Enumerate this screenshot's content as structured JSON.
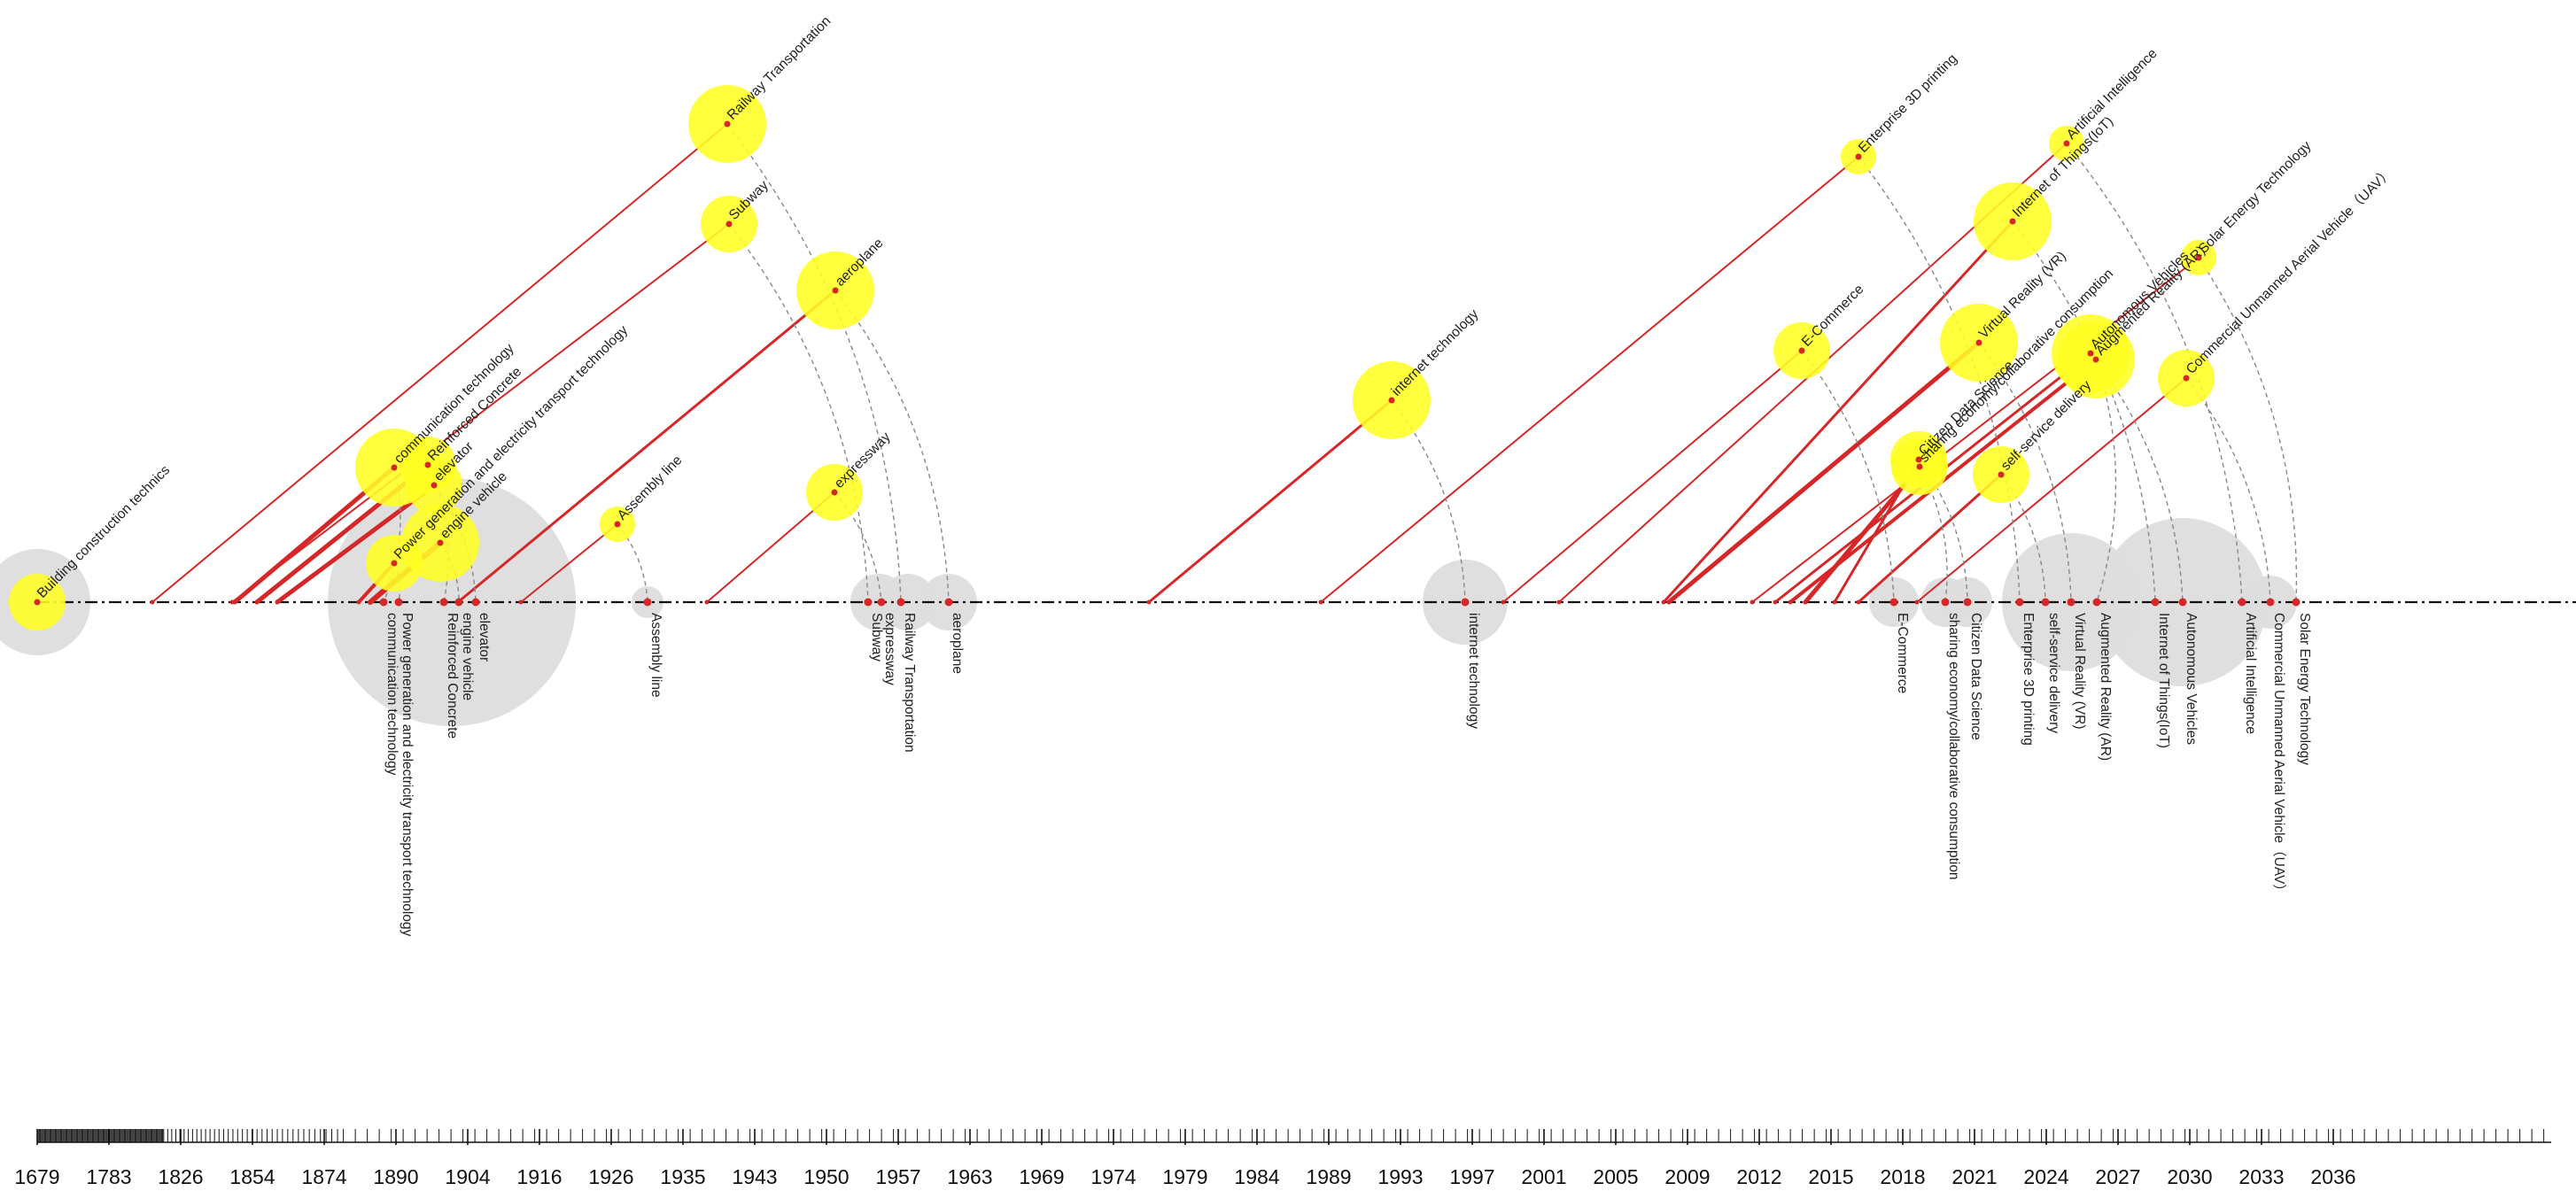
{
  "chart_data": {
    "type": "timeline",
    "title": "",
    "xlabel": "",
    "ylabel": "",
    "x_axis_labels": [
      "1679",
      "1783",
      "1826",
      "1854",
      "1874",
      "1890",
      "1904",
      "1916",
      "1926",
      "1935",
      "1943",
      "1950",
      "1957",
      "1963",
      "1969",
      "1974",
      "1979",
      "1984",
      "1989",
      "1993",
      "1997",
      "2001",
      "2005",
      "2009",
      "2012",
      "2015",
      "2018",
      "2021",
      "2024",
      "2027",
      "2030",
      "2033",
      "2036"
    ],
    "colors": {
      "bubble": "#ffff22",
      "mark": "#d62728",
      "burst": "#dddddd",
      "axis": "#111111",
      "arc": "#888888"
    },
    "events": [
      {
        "name": "Building construction technics",
        "top_year": 1679,
        "bottom_year": null,
        "size": "medium"
      },
      {
        "name": "communication technology",
        "top_year": 1890,
        "bottom_year": 1890,
        "size": "large"
      },
      {
        "name": "Reinforced Concrete",
        "top_year": 1897,
        "bottom_year": 1897,
        "size": "medium"
      },
      {
        "name": "elevator",
        "top_year": 1902,
        "bottom_year": 1903,
        "size": "medium"
      },
      {
        "name": "Power generation and electricity transport technology",
        "top_year": 1893,
        "bottom_year": 1893,
        "size": "medium"
      },
      {
        "name": "engine vehicle",
        "top_year": 1899,
        "bottom_year": 1901,
        "size": "large"
      },
      {
        "name": "Assembly line",
        "top_year": 1926,
        "bottom_year": 1931,
        "size": "small"
      },
      {
        "name": "Railway Transportation",
        "top_year": 1940,
        "bottom_year": 1956,
        "size": "large"
      },
      {
        "name": "Subway",
        "top_year": 1940,
        "bottom_year": 1953,
        "size": "medium"
      },
      {
        "name": "aeroplane",
        "top_year": 1950,
        "bottom_year": 1959,
        "size": "large"
      },
      {
        "name": "expressway",
        "top_year": 1950,
        "bottom_year": 1954,
        "size": "medium"
      },
      {
        "name": "internet technology",
        "top_year": 1989,
        "bottom_year": 1995,
        "size": "large"
      },
      {
        "name": "Enterprise 3D printing",
        "top_year": 2013,
        "bottom_year": 2019,
        "size": "small"
      },
      {
        "name": "E-Commerce",
        "top_year": 2010,
        "bottom_year": 2014,
        "size": "medium"
      },
      {
        "name": "Artificial Intelligence",
        "top_year": 2021,
        "bottom_year": 2027,
        "size": "small"
      },
      {
        "name": "Internet of Things(IoT)",
        "top_year": 2019,
        "bottom_year": 2024,
        "size": "large"
      },
      {
        "name": "Virtual Reality (VR)",
        "top_year": 2017,
        "bottom_year": 2021,
        "size": "large"
      },
      {
        "name": "Solar Energy Technology",
        "top_year": 2022,
        "bottom_year": 2029,
        "size": "small"
      },
      {
        "name": "Commercial Unmanned Aerial Vehicle（UAV）",
        "top_year": 2025,
        "bottom_year": 2028,
        "size": "medium"
      },
      {
        "name": "Autonomous Vehicles",
        "top_year": 2021,
        "bottom_year": 2026,
        "size": "large"
      },
      {
        "name": "sharing economy/collaborative consumption",
        "top_year": 2015,
        "bottom_year": 2016,
        "size": "medium"
      },
      {
        "name": "Augmented Reality (AR)",
        "top_year": 2021,
        "bottom_year": 2022,
        "size": "large"
      },
      {
        "name": "Citizen Data Science",
        "top_year": 2016,
        "bottom_year": 2017,
        "size": "medium"
      },
      {
        "name": "self-service delivery",
        "top_year": 2018,
        "bottom_year": 2020,
        "size": "medium"
      }
    ]
  }
}
